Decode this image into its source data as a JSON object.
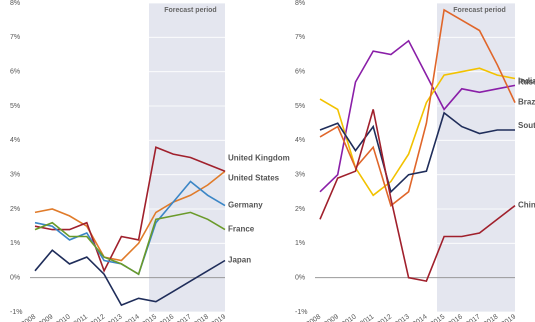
{
  "chart_data": [
    {
      "type": "line",
      "annotation": "Forecast period",
      "categories": [
        "2008",
        "2009",
        "2010",
        "2011",
        "2012",
        "2013",
        "2014",
        "2015",
        "2016",
        "2017",
        "2018",
        "2019"
      ],
      "ylim": [
        -1,
        8
      ],
      "yticks": [
        {
          "value": -1,
          "label": "-1%"
        },
        {
          "value": 0,
          "label": "0%"
        },
        {
          "value": 1,
          "label": "1%"
        },
        {
          "value": 2,
          "label": "2%"
        },
        {
          "value": 3,
          "label": "3%"
        },
        {
          "value": 4,
          "label": "4%"
        },
        {
          "value": 5,
          "label": "5%"
        },
        {
          "value": 6,
          "label": "6%"
        },
        {
          "value": 7,
          "label": "7%"
        },
        {
          "value": 8,
          "label": "8%"
        }
      ],
      "grid": true,
      "series": [
        {
          "name": "United Kingdom",
          "color": "#e07b2a",
          "values": [
            1.9,
            2.0,
            1.8,
            1.5,
            0.6,
            0.5,
            1.0,
            1.9,
            2.2,
            2.4,
            2.7,
            3.1
          ]
        },
        {
          "name": "United States",
          "color": "#a0202c",
          "values": [
            1.5,
            1.4,
            1.4,
            1.6,
            0.2,
            1.2,
            1.1,
            3.8,
            3.6,
            3.5,
            3.3,
            3.1
          ]
        },
        {
          "name": "Germany",
          "color": "#3b86c6",
          "values": [
            1.6,
            1.5,
            1.1,
            1.3,
            0.5,
            0.4,
            0.1,
            1.6,
            2.2,
            2.8,
            2.4,
            2.1
          ]
        },
        {
          "name": "France",
          "color": "#6a9a2a",
          "values": [
            1.4,
            1.6,
            1.2,
            1.2,
            0.6,
            0.4,
            0.1,
            1.7,
            1.8,
            1.9,
            1.7,
            1.4
          ]
        },
        {
          "name": "Japan",
          "color": "#1f2d5a",
          "values": [
            0.2,
            0.8,
            0.4,
            0.6,
            0.1,
            -0.8,
            -0.6,
            -0.7,
            -0.4,
            -0.1,
            0.2,
            0.5
          ]
        }
      ]
    },
    {
      "type": "line",
      "annotation": "Forecast period",
      "categories": [
        "2008",
        "2009",
        "2010",
        "2011",
        "2012",
        "2013",
        "2014",
        "2015",
        "2016",
        "2017",
        "2018",
        "2019"
      ],
      "ylim": [
        -1,
        8
      ],
      "yticks": [
        {
          "value": -1,
          "label": "-1%"
        },
        {
          "value": 0,
          "label": "0%"
        },
        {
          "value": 1,
          "label": "1%"
        },
        {
          "value": 2,
          "label": "2%"
        },
        {
          "value": 3,
          "label": "3%"
        },
        {
          "value": 4,
          "label": "4%"
        },
        {
          "value": 5,
          "label": "5%"
        },
        {
          "value": 6,
          "label": "6%"
        },
        {
          "value": 7,
          "label": "7%"
        },
        {
          "value": 8,
          "label": "8%"
        }
      ],
      "grid": true,
      "series": [
        {
          "name": "India",
          "color": "#8a1fa8",
          "values": [
            2.5,
            3.0,
            5.7,
            6.6,
            6.5,
            6.9,
            5.9,
            4.9,
            5.5,
            5.4,
            5.5,
            5.6
          ]
        },
        {
          "name": "Russia",
          "color": "#f2c200",
          "values": [
            5.2,
            4.9,
            3.2,
            2.4,
            2.8,
            3.6,
            5.1,
            5.9,
            6.0,
            6.1,
            5.9,
            5.8
          ]
        },
        {
          "name": "Brazil",
          "color": "#e0662a",
          "values": [
            4.1,
            4.4,
            3.2,
            3.8,
            2.1,
            2.5,
            4.5,
            7.8,
            7.5,
            7.2,
            6.2,
            5.1
          ]
        },
        {
          "name": "South Africa",
          "color": "#1f2d5a",
          "values": [
            4.3,
            4.5,
            3.7,
            4.4,
            2.5,
            3.0,
            3.1,
            4.8,
            4.4,
            4.2,
            4.3,
            4.3
          ]
        },
        {
          "name": "China",
          "color": "#a0202c",
          "values": [
            1.7,
            2.9,
            3.1,
            4.9,
            2.3,
            0.0,
            -0.1,
            1.2,
            1.2,
            1.3,
            1.7,
            2.1
          ]
        }
      ]
    }
  ]
}
